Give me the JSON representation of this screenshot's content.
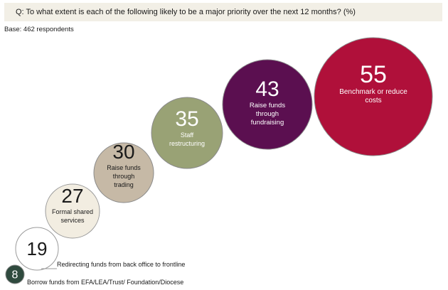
{
  "question": "Q: To what extent is each of the following likely to be a major priority over the next 12 months? (%)",
  "base": "Base: 462 respondents",
  "chart_data": {
    "type": "bubble",
    "items": [
      {
        "label": "Borrow funds from EFA/LEA/Trust/ Foundation/Diocese",
        "value": 8,
        "color": "#2f4a3e",
        "text_color": "#ffffff"
      },
      {
        "label": "Redirecting funds from back office to frontline",
        "value": 19,
        "color": "#ffffff",
        "text_color": "#1a1a1a"
      },
      {
        "label": "Formal shared services",
        "value": 27,
        "color": "#f2ede1",
        "text_color": "#1a1a1a"
      },
      {
        "label": "Raise funds through trading",
        "value": 30,
        "color": "#c6b9a6",
        "text_color": "#1a1a1a"
      },
      {
        "label": "Staff restructuring",
        "value": 35,
        "color": "#99a275",
        "text_color": "#ffffff"
      },
      {
        "label": "Raise funds through fundraising",
        "value": 43,
        "color": "#5b0f50",
        "text_color": "#ffffff"
      },
      {
        "label": "Benchmark or reduce costs",
        "value": 55,
        "color": "#b0103a",
        "text_color": "#ffffff"
      }
    ]
  }
}
